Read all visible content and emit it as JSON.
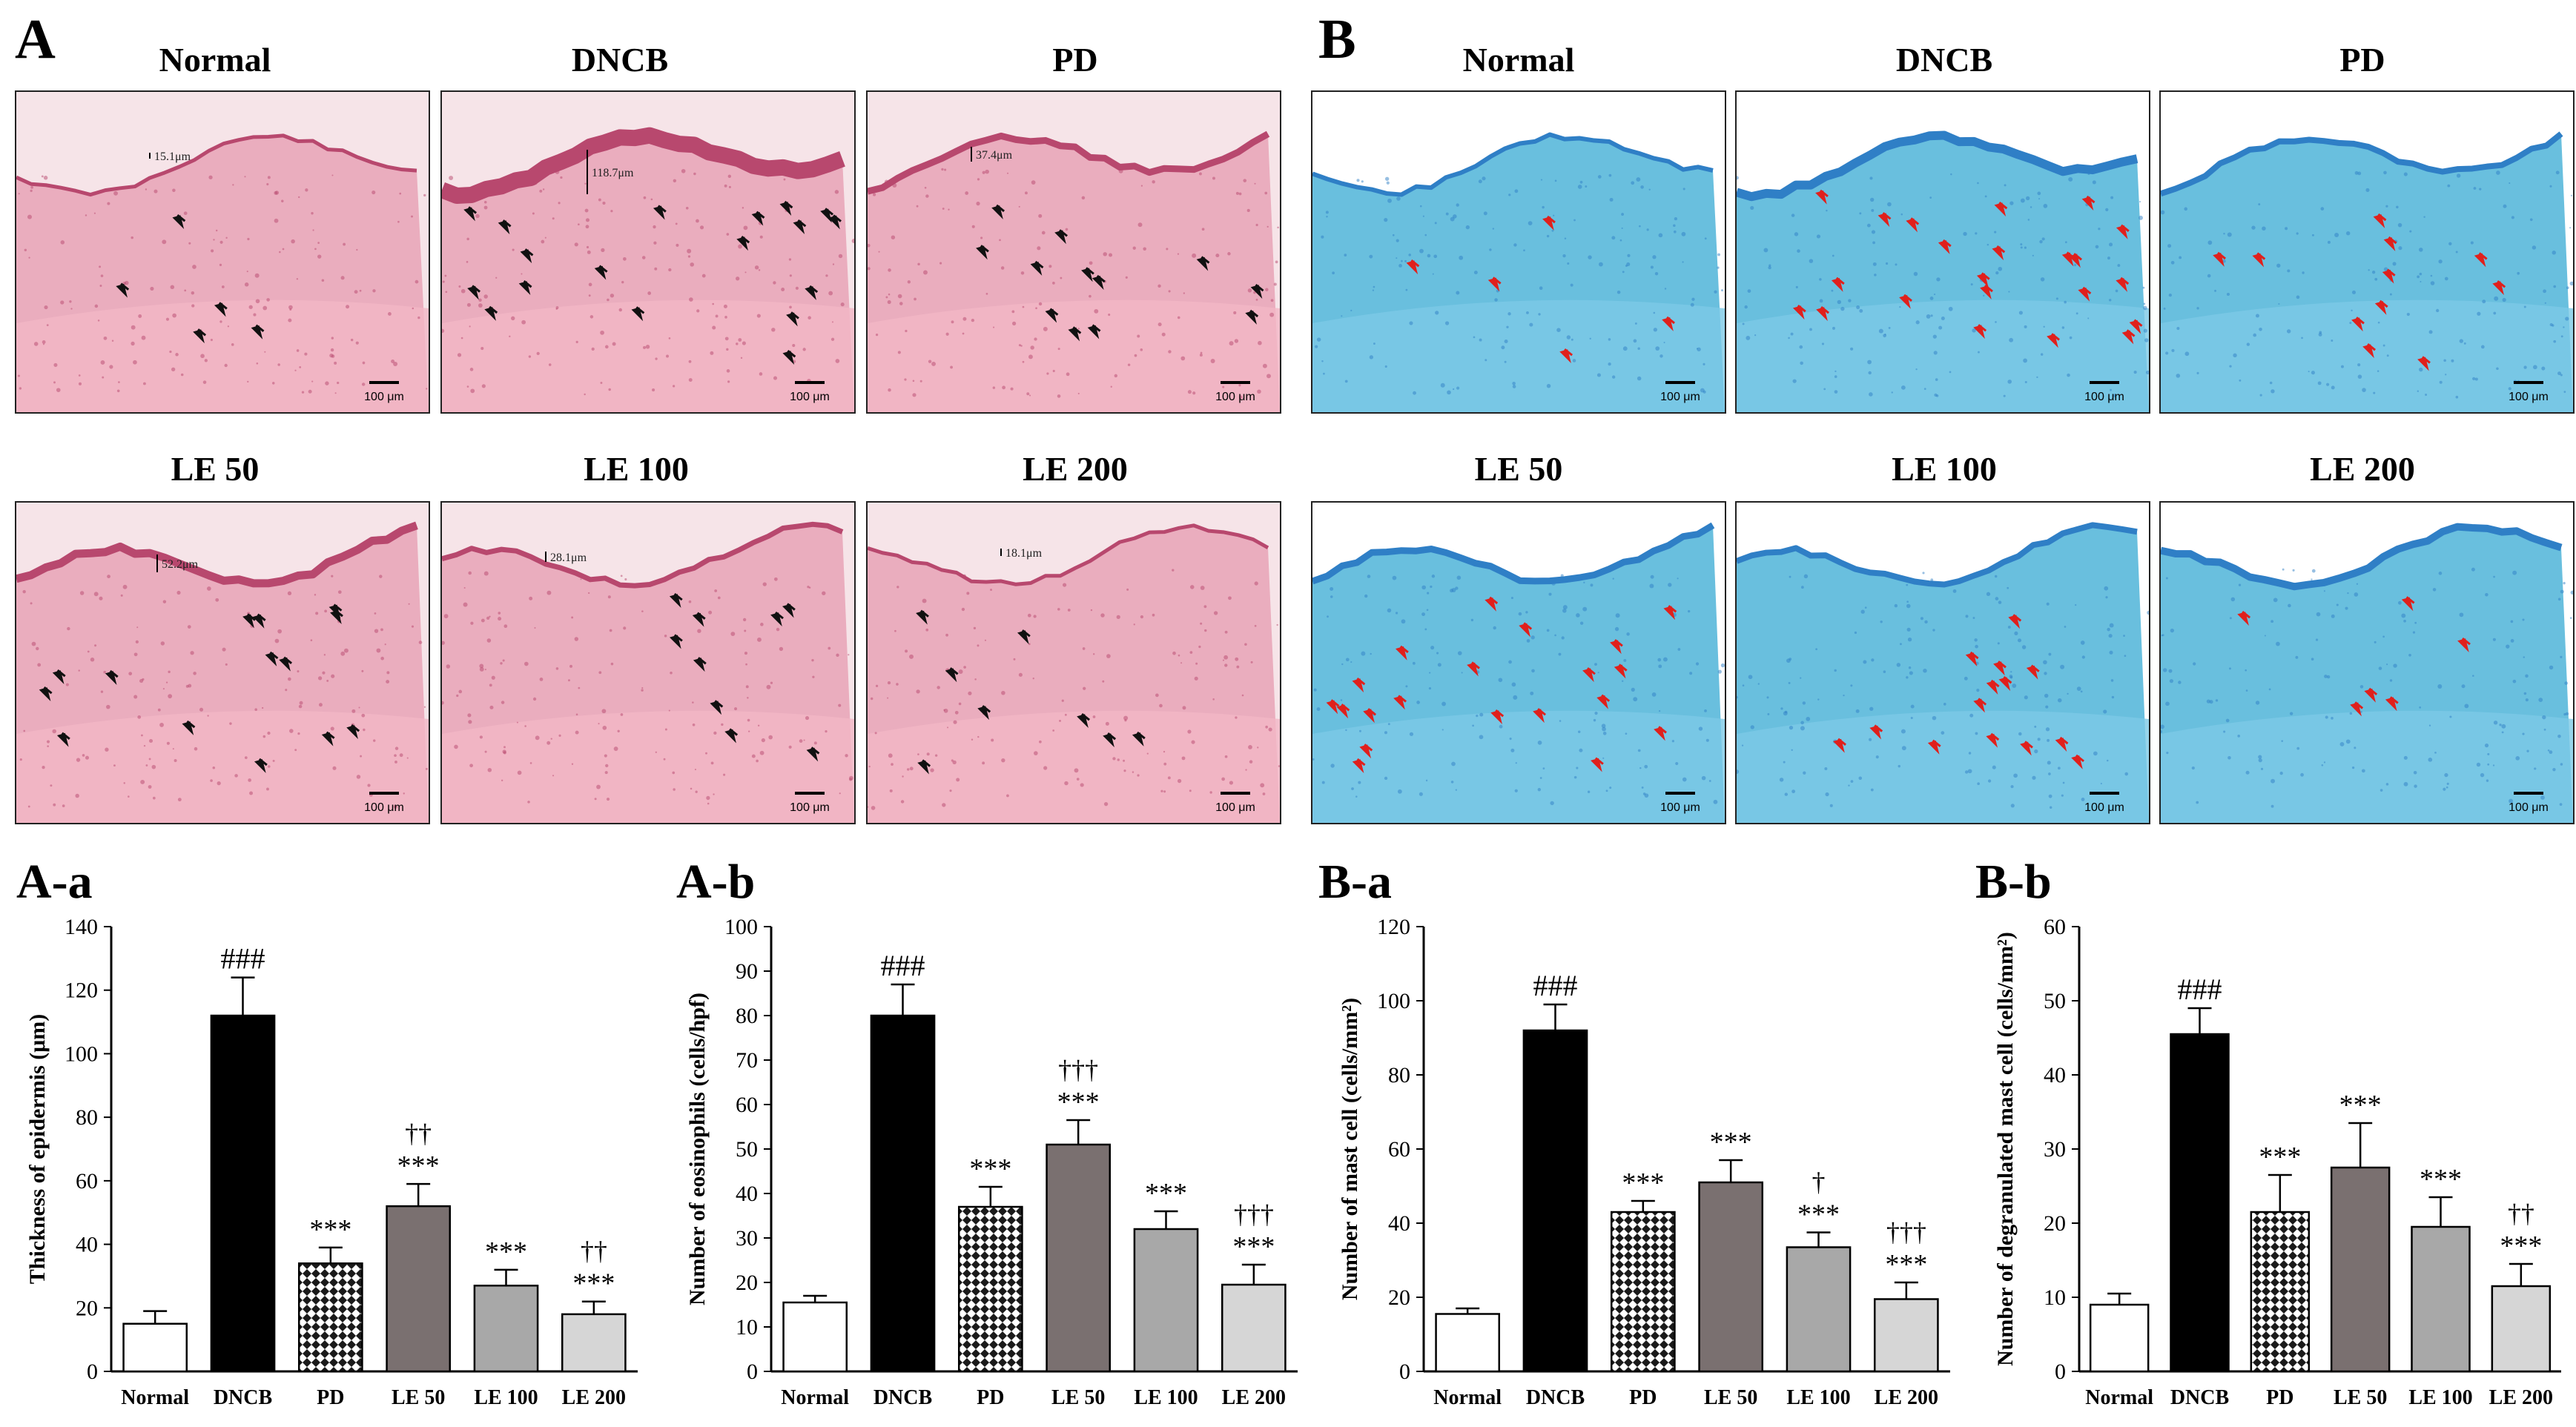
{
  "panels": {
    "A": "A",
    "B": "B"
  },
  "he_images": [
    {
      "label": "Normal",
      "measurement": "15.1μm",
      "scale": "100 μm"
    },
    {
      "label": "DNCB",
      "measurement": "118.7μm",
      "scale": "100 μm"
    },
    {
      "label": "PD",
      "measurement": "37.4μm",
      "scale": "100 μm"
    },
    {
      "label": "LE 50",
      "measurement": "52.2μm",
      "scale": "100 μm"
    },
    {
      "label": "LE 100",
      "measurement": "28.1μm",
      "scale": "100 μm"
    },
    {
      "label": "LE 200",
      "measurement": "18.1μm",
      "scale": "100 μm"
    }
  ],
  "tb_images": [
    {
      "label": "Normal",
      "scale": "100 μm"
    },
    {
      "label": "DNCB",
      "scale": "100 μm"
    },
    {
      "label": "PD",
      "scale": "100 μm"
    },
    {
      "label": "LE 50",
      "scale": "100 μm"
    },
    {
      "label": "LE 100",
      "scale": "100 μm"
    },
    {
      "label": "LE 200",
      "scale": "100 μm"
    }
  ],
  "colors": {
    "he_bg": "#f6e4e8",
    "he_tissue": "#e8a3b6",
    "he_epidermis": "#b8486e",
    "tb_bg": "#ffffff",
    "tb_tissue": "#4fb4d8",
    "tb_epidermis": "#2f7fc6",
    "arrow_black": "#111111",
    "arrow_red": "#e0201c"
  },
  "chart_data": [
    {
      "id": "A-a",
      "type": "bar",
      "ylabel": "Thickness of epidermis (μm)",
      "ylim": [
        0,
        140
      ],
      "yticks": [
        0,
        20,
        40,
        60,
        80,
        100,
        120,
        140
      ],
      "categories": [
        "Normal",
        "DNCB",
        "PD",
        "LE 50",
        "LE 100",
        "LE 200"
      ],
      "values": [
        15,
        112,
        34,
        52,
        27,
        18
      ],
      "errors": [
        4,
        12,
        5,
        7,
        5,
        4
      ],
      "annotations": [
        [
          "",
          ""
        ],
        [
          "###",
          ""
        ],
        [
          "***",
          ""
        ],
        [
          "***",
          "††"
        ],
        [
          "***",
          ""
        ],
        [
          "***",
          "††"
        ]
      ]
    },
    {
      "id": "A-b",
      "type": "bar",
      "ylabel": "Number of eosinophils (cells/hpf)",
      "ylim": [
        0,
        100
      ],
      "yticks": [
        0,
        10,
        20,
        30,
        40,
        50,
        60,
        70,
        80,
        90,
        100
      ],
      "categories": [
        "Normal",
        "DNCB",
        "PD",
        "LE 50",
        "LE 100",
        "LE 200"
      ],
      "values": [
        15.5,
        80,
        37,
        51,
        32,
        19.5
      ],
      "errors": [
        1.5,
        7,
        4.5,
        5.5,
        4,
        4.5
      ],
      "annotations": [
        [
          "",
          ""
        ],
        [
          "###",
          ""
        ],
        [
          "***",
          ""
        ],
        [
          "***",
          "†††"
        ],
        [
          "***",
          ""
        ],
        [
          "***",
          "†††"
        ]
      ]
    },
    {
      "id": "B-a",
      "type": "bar",
      "ylabel": "Number of mast cell (cells/mm²)",
      "ylim": [
        0,
        120
      ],
      "yticks": [
        0,
        20,
        40,
        60,
        80,
        100,
        120
      ],
      "categories": [
        "Normal",
        "DNCB",
        "PD",
        "LE 50",
        "LE 100",
        "LE 200"
      ],
      "values": [
        15.5,
        92,
        43,
        51,
        33.5,
        19.5
      ],
      "errors": [
        1.5,
        7,
        3,
        6,
        4,
        4.5
      ],
      "annotations": [
        [
          "",
          ""
        ],
        [
          "###",
          ""
        ],
        [
          "***",
          ""
        ],
        [
          "***",
          ""
        ],
        [
          "***",
          "†"
        ],
        [
          "***",
          "†††"
        ]
      ]
    },
    {
      "id": "B-b",
      "type": "bar",
      "ylabel": "Number of degranulated mast cell (cells/mm²)",
      "ylim": [
        0,
        60
      ],
      "yticks": [
        0,
        10,
        20,
        30,
        40,
        50,
        60
      ],
      "categories": [
        "Normal",
        "DNCB",
        "PD",
        "LE 50",
        "LE 100",
        "LE 200"
      ],
      "values": [
        9,
        45.5,
        21.5,
        27.5,
        19.5,
        11.5
      ],
      "errors": [
        1.5,
        3.5,
        5,
        6,
        4,
        3
      ],
      "annotations": [
        [
          "",
          ""
        ],
        [
          "###",
          ""
        ],
        [
          "***",
          ""
        ],
        [
          "***",
          ""
        ],
        [
          "***",
          ""
        ],
        [
          "***",
          "††"
        ]
      ]
    }
  ]
}
